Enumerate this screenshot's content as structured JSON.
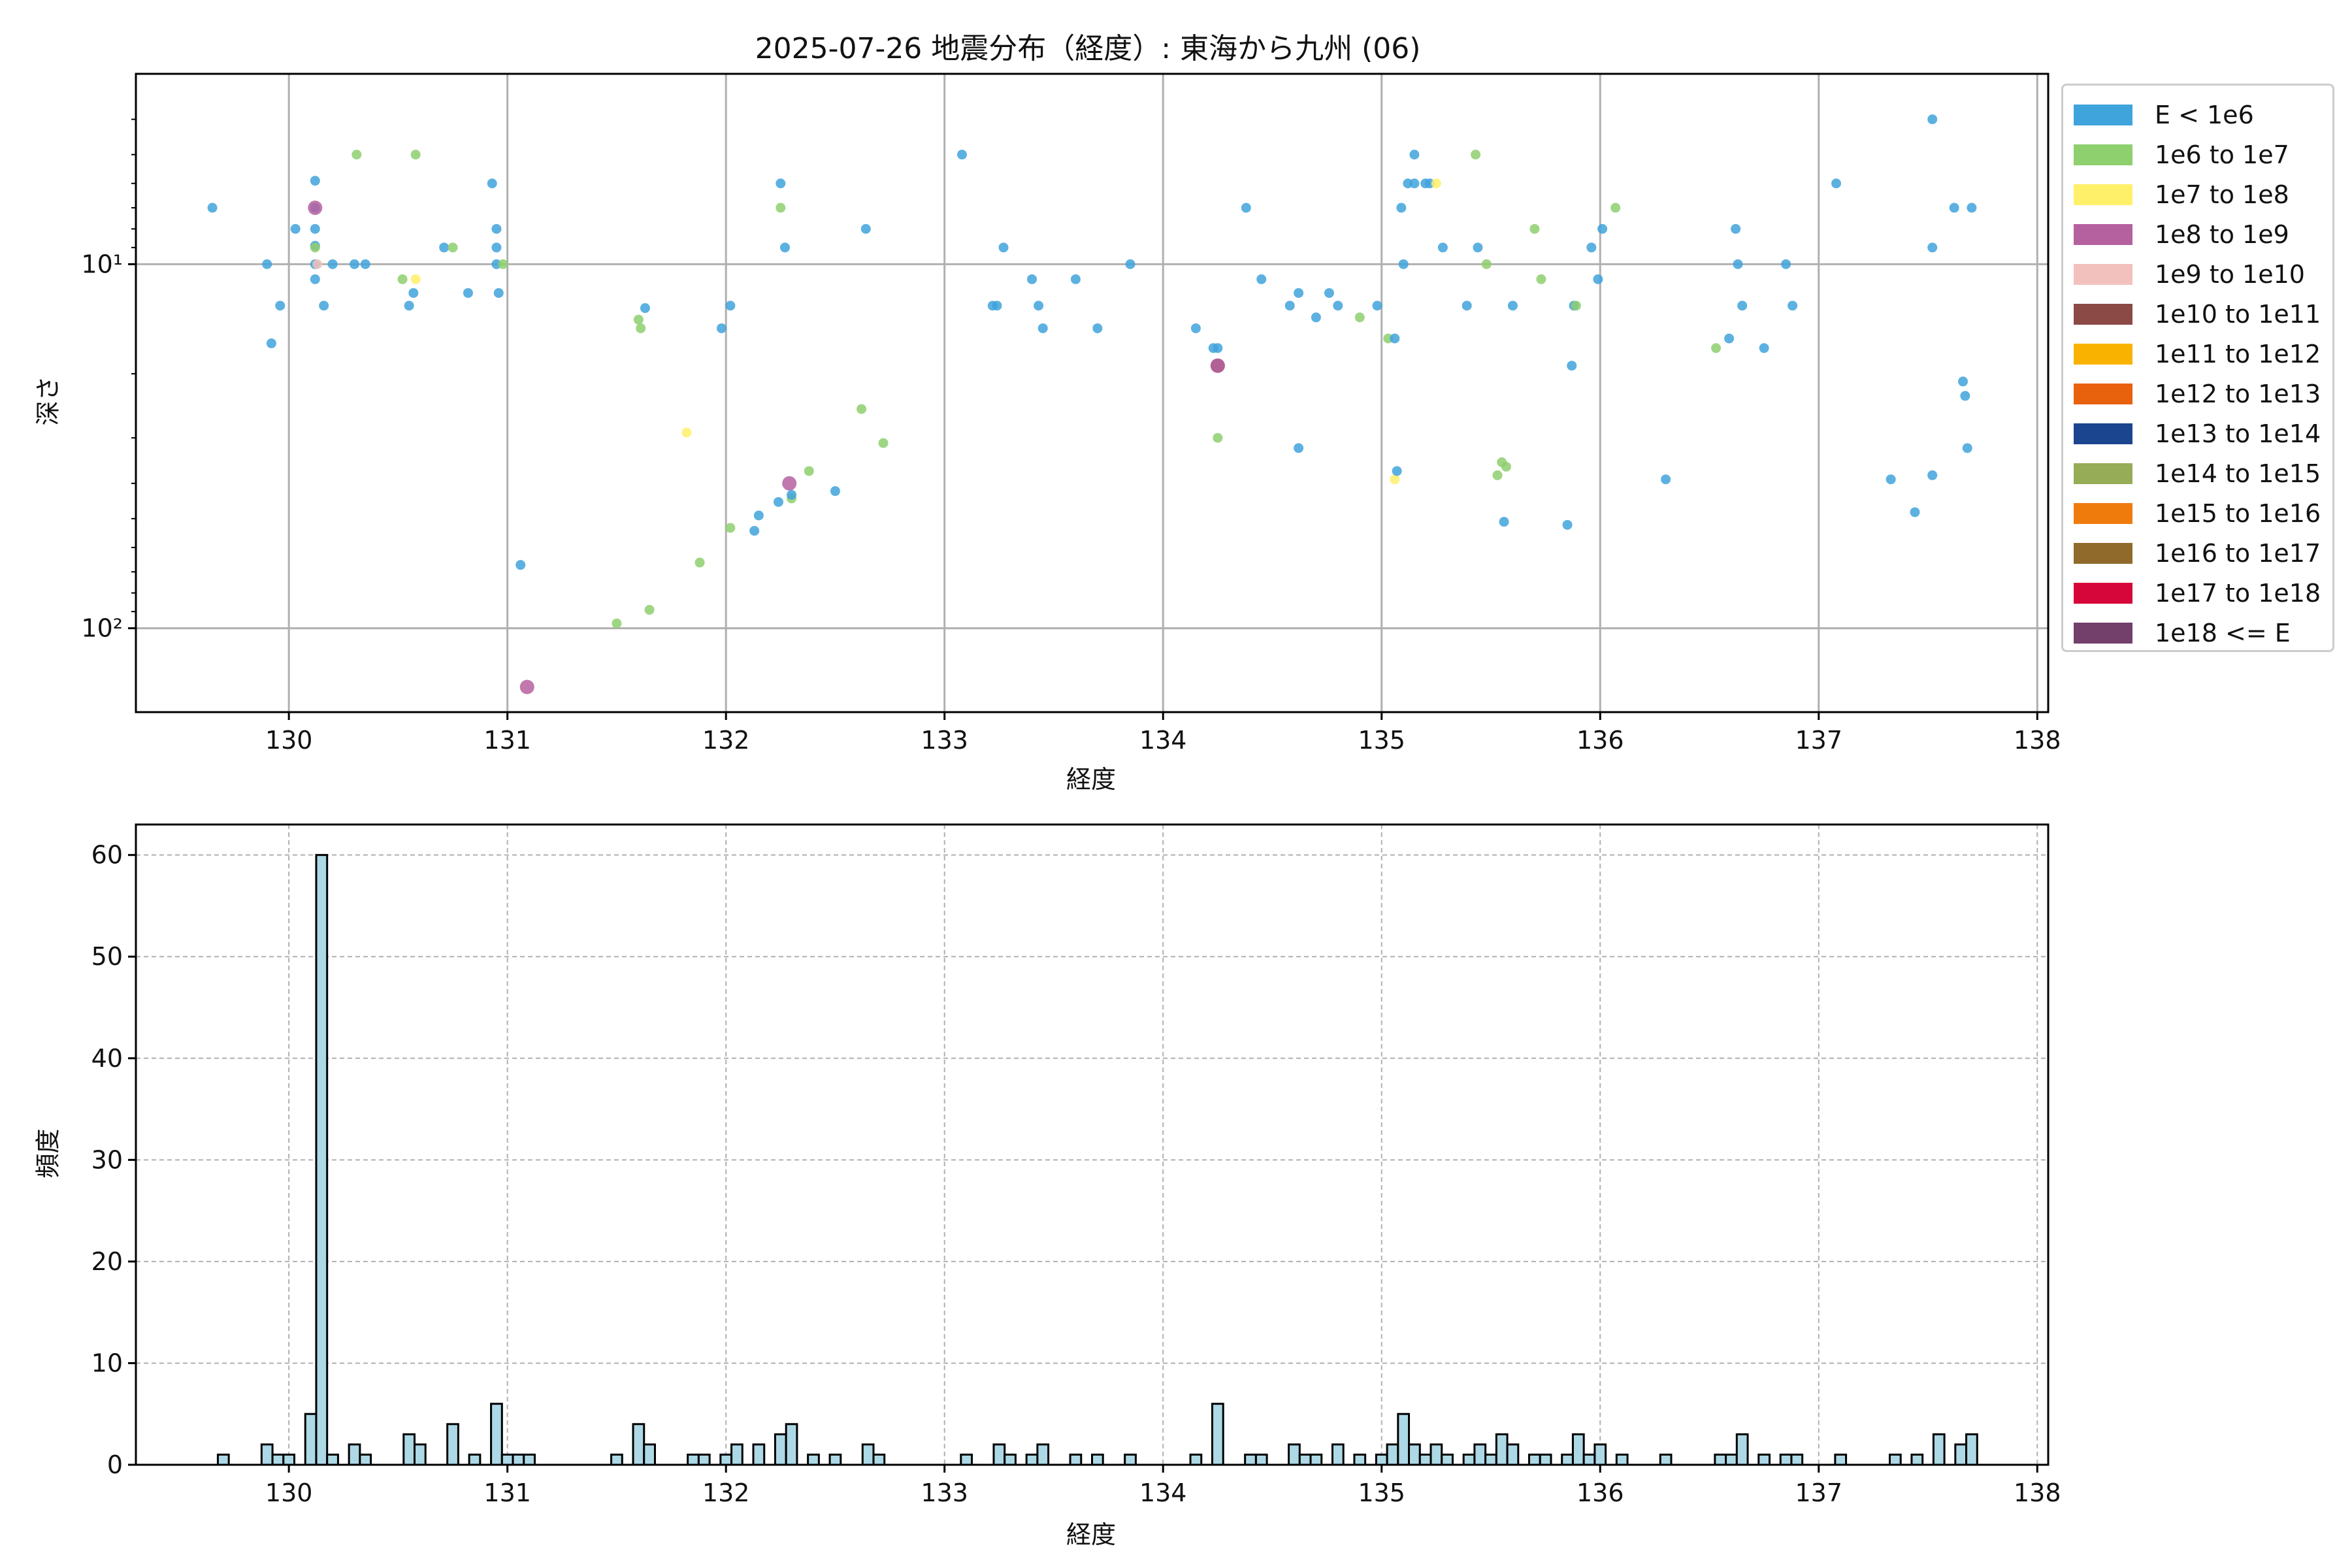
{
  "title": "2025-07-26 地震分布（経度）: 東海から九州 (06)",
  "legend": [
    {
      "label": "E < 1e6",
      "color": "#3fa3dc"
    },
    {
      "label": "1e6 to 1e7",
      "color": "#8ecf6e"
    },
    {
      "label": "1e7 to 1e8",
      "color": "#fff06a"
    },
    {
      "label": "1e8 to 1e9",
      "color": "#b5609f"
    },
    {
      "label": "1e9 to 1e10",
      "color": "#f3c1bd"
    },
    {
      "label": "1e10 to 1e11",
      "color": "#8b4a45"
    },
    {
      "label": "1e11 to 1e12",
      "color": "#f9b200"
    },
    {
      "label": "1e12 to 1e13",
      "color": "#e8620d"
    },
    {
      "label": "1e13 to 1e14",
      "color": "#1c458f"
    },
    {
      "label": "1e14 to 1e15",
      "color": "#97ac56"
    },
    {
      "label": "1e15 to 1e16",
      "color": "#f07b0d"
    },
    {
      "label": "1e16 to 1e17",
      "color": "#8f6a2a"
    },
    {
      "label": "1e17 to 1e18",
      "color": "#d6063a"
    },
    {
      "label": "1e18 <= E",
      "color": "#733f6b"
    }
  ],
  "chart_data": [
    {
      "type": "scatter",
      "xlabel": "経度",
      "ylabel": "深さ",
      "xlim": [
        129.3,
        138.05
      ],
      "ylim": [
        170,
        3
      ],
      "yscale": "log",
      "yaxis_inverted": true,
      "xticks": [
        130,
        131,
        132,
        133,
        134,
        135,
        136,
        137,
        138
      ],
      "yticks": [
        {
          "value": 10,
          "label": "10¹"
        },
        {
          "value": 100,
          "label": "10²"
        }
      ],
      "grid": true,
      "points": [
        {
          "x": 129.65,
          "y": 7,
          "c": 0
        },
        {
          "x": 129.9,
          "y": 10,
          "c": 0
        },
        {
          "x": 129.92,
          "y": 16.5,
          "c": 0
        },
        {
          "x": 129.96,
          "y": 13,
          "c": 0
        },
        {
          "x": 130.03,
          "y": 8,
          "c": 0
        },
        {
          "x": 130.12,
          "y": 5.9,
          "c": 0
        },
        {
          "x": 130.12,
          "y": 7,
          "c": 0
        },
        {
          "x": 130.12,
          "y": 8,
          "c": 0
        },
        {
          "x": 130.12,
          "y": 8.9,
          "c": 0
        },
        {
          "x": 130.12,
          "y": 10,
          "c": 0
        },
        {
          "x": 130.12,
          "y": 11,
          "c": 0
        },
        {
          "x": 130.12,
          "y": 9,
          "c": 1
        },
        {
          "x": 130.13,
          "y": 10,
          "c": 4
        },
        {
          "x": 130.12,
          "y": 7,
          "c": 3
        },
        {
          "x": 130.16,
          "y": 13,
          "c": 0
        },
        {
          "x": 130.2,
          "y": 10,
          "c": 0
        },
        {
          "x": 130.3,
          "y": 10,
          "c": 0
        },
        {
          "x": 130.35,
          "y": 10,
          "c": 0
        },
        {
          "x": 130.31,
          "y": 5,
          "c": 1
        },
        {
          "x": 130.52,
          "y": 11,
          "c": 1
        },
        {
          "x": 130.55,
          "y": 13,
          "c": 0
        },
        {
          "x": 130.57,
          "y": 12,
          "c": 0
        },
        {
          "x": 130.58,
          "y": 11,
          "c": 2
        },
        {
          "x": 130.58,
          "y": 5,
          "c": 1
        },
        {
          "x": 130.71,
          "y": 9,
          "c": 0
        },
        {
          "x": 130.75,
          "y": 9,
          "c": 1
        },
        {
          "x": 130.82,
          "y": 12,
          "c": 0
        },
        {
          "x": 130.93,
          "y": 6,
          "c": 0
        },
        {
          "x": 130.95,
          "y": 8,
          "c": 0
        },
        {
          "x": 130.95,
          "y": 9,
          "c": 0
        },
        {
          "x": 130.95,
          "y": 10,
          "c": 0
        },
        {
          "x": 130.96,
          "y": 12,
          "c": 0
        },
        {
          "x": 130.98,
          "y": 10,
          "c": 1
        },
        {
          "x": 131.06,
          "y": 67,
          "c": 0
        },
        {
          "x": 131.09,
          "y": 145,
          "c": 3
        },
        {
          "x": 131.5,
          "y": 97,
          "c": 1
        },
        {
          "x": 131.6,
          "y": 14.2,
          "c": 1
        },
        {
          "x": 131.61,
          "y": 15,
          "c": 1
        },
        {
          "x": 131.63,
          "y": 13.2,
          "c": 0
        },
        {
          "x": 131.65,
          "y": 89,
          "c": 1
        },
        {
          "x": 131.82,
          "y": 29,
          "c": 2
        },
        {
          "x": 131.88,
          "y": 66,
          "c": 1
        },
        {
          "x": 131.98,
          "y": 15,
          "c": 0
        },
        {
          "x": 132.02,
          "y": 13,
          "c": 0
        },
        {
          "x": 132.02,
          "y": 53,
          "c": 1
        },
        {
          "x": 132.13,
          "y": 54,
          "c": 0
        },
        {
          "x": 132.15,
          "y": 49,
          "c": 0
        },
        {
          "x": 132.24,
          "y": 45,
          "c": 0
        },
        {
          "x": 132.25,
          "y": 6,
          "c": 0
        },
        {
          "x": 132.25,
          "y": 7,
          "c": 1
        },
        {
          "x": 132.27,
          "y": 9,
          "c": 0
        },
        {
          "x": 132.29,
          "y": 40,
          "c": 3
        },
        {
          "x": 132.3,
          "y": 44,
          "c": 1
        },
        {
          "x": 132.3,
          "y": 43,
          "c": 0
        },
        {
          "x": 132.38,
          "y": 37,
          "c": 1
        },
        {
          "x": 132.5,
          "y": 42,
          "c": 0
        },
        {
          "x": 132.62,
          "y": 25,
          "c": 1
        },
        {
          "x": 132.64,
          "y": 8,
          "c": 0
        },
        {
          "x": 132.72,
          "y": 31,
          "c": 1
        },
        {
          "x": 133.08,
          "y": 5,
          "c": 0
        },
        {
          "x": 133.22,
          "y": 13,
          "c": 0
        },
        {
          "x": 133.24,
          "y": 13,
          "c": 0
        },
        {
          "x": 133.27,
          "y": 9,
          "c": 0
        },
        {
          "x": 133.4,
          "y": 11,
          "c": 0
        },
        {
          "x": 133.43,
          "y": 13,
          "c": 0
        },
        {
          "x": 133.45,
          "y": 15,
          "c": 0
        },
        {
          "x": 133.6,
          "y": 11,
          "c": 0
        },
        {
          "x": 133.7,
          "y": 15,
          "c": 0
        },
        {
          "x": 133.85,
          "y": 10,
          "c": 0
        },
        {
          "x": 134.15,
          "y": 15,
          "c": 0
        },
        {
          "x": 134.23,
          "y": 17,
          "c": 0
        },
        {
          "x": 134.25,
          "y": 17,
          "c": 0
        },
        {
          "x": 134.25,
          "y": 19,
          "c": 5
        },
        {
          "x": 134.25,
          "y": 19,
          "c": 3
        },
        {
          "x": 134.25,
          "y": 30,
          "c": 1
        },
        {
          "x": 134.38,
          "y": 7,
          "c": 0
        },
        {
          "x": 134.45,
          "y": 11,
          "c": 0
        },
        {
          "x": 134.58,
          "y": 13,
          "c": 0
        },
        {
          "x": 134.62,
          "y": 12,
          "c": 0
        },
        {
          "x": 134.62,
          "y": 32,
          "c": 0
        },
        {
          "x": 134.7,
          "y": 14,
          "c": 0
        },
        {
          "x": 134.76,
          "y": 12,
          "c": 0
        },
        {
          "x": 134.8,
          "y": 13,
          "c": 0
        },
        {
          "x": 134.9,
          "y": 14,
          "c": 1
        },
        {
          "x": 134.98,
          "y": 13,
          "c": 0
        },
        {
          "x": 135.03,
          "y": 16,
          "c": 1
        },
        {
          "x": 135.06,
          "y": 16,
          "c": 0
        },
        {
          "x": 135.06,
          "y": 39,
          "c": 2
        },
        {
          "x": 135.07,
          "y": 37,
          "c": 0
        },
        {
          "x": 135.09,
          "y": 7,
          "c": 0
        },
        {
          "x": 135.1,
          "y": 10,
          "c": 0
        },
        {
          "x": 135.12,
          "y": 6,
          "c": 0
        },
        {
          "x": 135.15,
          "y": 6,
          "c": 0
        },
        {
          "x": 135.15,
          "y": 5,
          "c": 0
        },
        {
          "x": 135.2,
          "y": 6,
          "c": 0
        },
        {
          "x": 135.22,
          "y": 6,
          "c": 0
        },
        {
          "x": 135.25,
          "y": 6,
          "c": 2
        },
        {
          "x": 135.28,
          "y": 9,
          "c": 0
        },
        {
          "x": 135.39,
          "y": 13,
          "c": 0
        },
        {
          "x": 135.43,
          "y": 5,
          "c": 1
        },
        {
          "x": 135.44,
          "y": 9,
          "c": 0
        },
        {
          "x": 135.48,
          "y": 10,
          "c": 1
        },
        {
          "x": 135.53,
          "y": 38,
          "c": 1
        },
        {
          "x": 135.55,
          "y": 35,
          "c": 1
        },
        {
          "x": 135.56,
          "y": 51,
          "c": 0
        },
        {
          "x": 135.57,
          "y": 36,
          "c": 1
        },
        {
          "x": 135.6,
          "y": 13,
          "c": 0
        },
        {
          "x": 135.7,
          "y": 8,
          "c": 1
        },
        {
          "x": 135.73,
          "y": 11,
          "c": 1
        },
        {
          "x": 135.85,
          "y": 52,
          "c": 0
        },
        {
          "x": 135.87,
          "y": 19,
          "c": 0
        },
        {
          "x": 135.88,
          "y": 13,
          "c": 0
        },
        {
          "x": 135.89,
          "y": 13,
          "c": 1
        },
        {
          "x": 135.96,
          "y": 9,
          "c": 0
        },
        {
          "x": 135.99,
          "y": 11,
          "c": 0
        },
        {
          "x": 136.01,
          "y": 8,
          "c": 0
        },
        {
          "x": 136.07,
          "y": 7,
          "c": 1
        },
        {
          "x": 136.3,
          "y": 39,
          "c": 0
        },
        {
          "x": 136.53,
          "y": 17,
          "c": 1
        },
        {
          "x": 136.59,
          "y": 16,
          "c": 0
        },
        {
          "x": 136.62,
          "y": 8,
          "c": 0
        },
        {
          "x": 136.63,
          "y": 10,
          "c": 0
        },
        {
          "x": 136.65,
          "y": 13,
          "c": 0
        },
        {
          "x": 136.75,
          "y": 17,
          "c": 0
        },
        {
          "x": 136.85,
          "y": 10,
          "c": 0
        },
        {
          "x": 136.88,
          "y": 13,
          "c": 0
        },
        {
          "x": 137.08,
          "y": 6,
          "c": 0
        },
        {
          "x": 137.33,
          "y": 39,
          "c": 0
        },
        {
          "x": 137.44,
          "y": 48,
          "c": 0
        },
        {
          "x": 137.52,
          "y": 4,
          "c": 0
        },
        {
          "x": 137.52,
          "y": 9,
          "c": 0
        },
        {
          "x": 137.52,
          "y": 38,
          "c": 0
        },
        {
          "x": 137.62,
          "y": 7,
          "c": 0
        },
        {
          "x": 137.66,
          "y": 21,
          "c": 0
        },
        {
          "x": 137.67,
          "y": 23,
          "c": 0
        },
        {
          "x": 137.68,
          "y": 32,
          "c": 0
        },
        {
          "x": 137.7,
          "y": 7,
          "c": 0
        }
      ]
    },
    {
      "type": "bar",
      "xlabel": "経度",
      "ylabel": "頻度",
      "xlim": [
        129.3,
        138.05
      ],
      "ylim": [
        0,
        63
      ],
      "xticks": [
        130,
        131,
        132,
        133,
        134,
        135,
        136,
        137,
        138
      ],
      "yticks": [
        0,
        10,
        20,
        30,
        40,
        50,
        60
      ],
      "grid": true,
      "bin_width": 0.05,
      "bins": [
        {
          "x": 129.7,
          "v": 1
        },
        {
          "x": 129.9,
          "v": 2
        },
        {
          "x": 129.95,
          "v": 1
        },
        {
          "x": 130.0,
          "v": 1
        },
        {
          "x": 130.1,
          "v": 5
        },
        {
          "x": 130.15,
          "v": 60
        },
        {
          "x": 130.2,
          "v": 1
        },
        {
          "x": 130.3,
          "v": 2
        },
        {
          "x": 130.35,
          "v": 1
        },
        {
          "x": 130.55,
          "v": 3
        },
        {
          "x": 130.6,
          "v": 2
        },
        {
          "x": 130.75,
          "v": 4
        },
        {
          "x": 130.85,
          "v": 1
        },
        {
          "x": 130.95,
          "v": 6
        },
        {
          "x": 131.0,
          "v": 1
        },
        {
          "x": 131.05,
          "v": 1
        },
        {
          "x": 131.1,
          "v": 1
        },
        {
          "x": 131.5,
          "v": 1
        },
        {
          "x": 131.6,
          "v": 4
        },
        {
          "x": 131.65,
          "v": 2
        },
        {
          "x": 131.85,
          "v": 1
        },
        {
          "x": 131.9,
          "v": 1
        },
        {
          "x": 132.0,
          "v": 1
        },
        {
          "x": 132.05,
          "v": 2
        },
        {
          "x": 132.15,
          "v": 2
        },
        {
          "x": 132.25,
          "v": 3
        },
        {
          "x": 132.3,
          "v": 4
        },
        {
          "x": 132.4,
          "v": 1
        },
        {
          "x": 132.5,
          "v": 1
        },
        {
          "x": 132.65,
          "v": 2
        },
        {
          "x": 132.7,
          "v": 1
        },
        {
          "x": 133.1,
          "v": 1
        },
        {
          "x": 133.25,
          "v": 2
        },
        {
          "x": 133.3,
          "v": 1
        },
        {
          "x": 133.4,
          "v": 1
        },
        {
          "x": 133.45,
          "v": 2
        },
        {
          "x": 133.6,
          "v": 1
        },
        {
          "x": 133.7,
          "v": 1
        },
        {
          "x": 133.85,
          "v": 1
        },
        {
          "x": 134.15,
          "v": 1
        },
        {
          "x": 134.25,
          "v": 6
        },
        {
          "x": 134.4,
          "v": 1
        },
        {
          "x": 134.45,
          "v": 1
        },
        {
          "x": 134.6,
          "v": 2
        },
        {
          "x": 134.65,
          "v": 1
        },
        {
          "x": 134.7,
          "v": 1
        },
        {
          "x": 134.8,
          "v": 2
        },
        {
          "x": 134.9,
          "v": 1
        },
        {
          "x": 135.0,
          "v": 1
        },
        {
          "x": 135.05,
          "v": 2
        },
        {
          "x": 135.1,
          "v": 5
        },
        {
          "x": 135.15,
          "v": 2
        },
        {
          "x": 135.2,
          "v": 1
        },
        {
          "x": 135.25,
          "v": 2
        },
        {
          "x": 135.3,
          "v": 1
        },
        {
          "x": 135.4,
          "v": 1
        },
        {
          "x": 135.45,
          "v": 2
        },
        {
          "x": 135.5,
          "v": 1
        },
        {
          "x": 135.55,
          "v": 3
        },
        {
          "x": 135.6,
          "v": 2
        },
        {
          "x": 135.7,
          "v": 1
        },
        {
          "x": 135.75,
          "v": 1
        },
        {
          "x": 135.85,
          "v": 1
        },
        {
          "x": 135.9,
          "v": 3
        },
        {
          "x": 135.95,
          "v": 1
        },
        {
          "x": 136.0,
          "v": 2
        },
        {
          "x": 136.1,
          "v": 1
        },
        {
          "x": 136.3,
          "v": 1
        },
        {
          "x": 136.55,
          "v": 1
        },
        {
          "x": 136.6,
          "v": 1
        },
        {
          "x": 136.65,
          "v": 3
        },
        {
          "x": 136.75,
          "v": 1
        },
        {
          "x": 136.85,
          "v": 1
        },
        {
          "x": 136.9,
          "v": 1
        },
        {
          "x": 137.1,
          "v": 1
        },
        {
          "x": 137.35,
          "v": 1
        },
        {
          "x": 137.45,
          "v": 1
        },
        {
          "x": 137.55,
          "v": 3
        },
        {
          "x": 137.65,
          "v": 2
        },
        {
          "x": 137.7,
          "v": 3
        }
      ],
      "bar_color": "#add8e6"
    }
  ]
}
